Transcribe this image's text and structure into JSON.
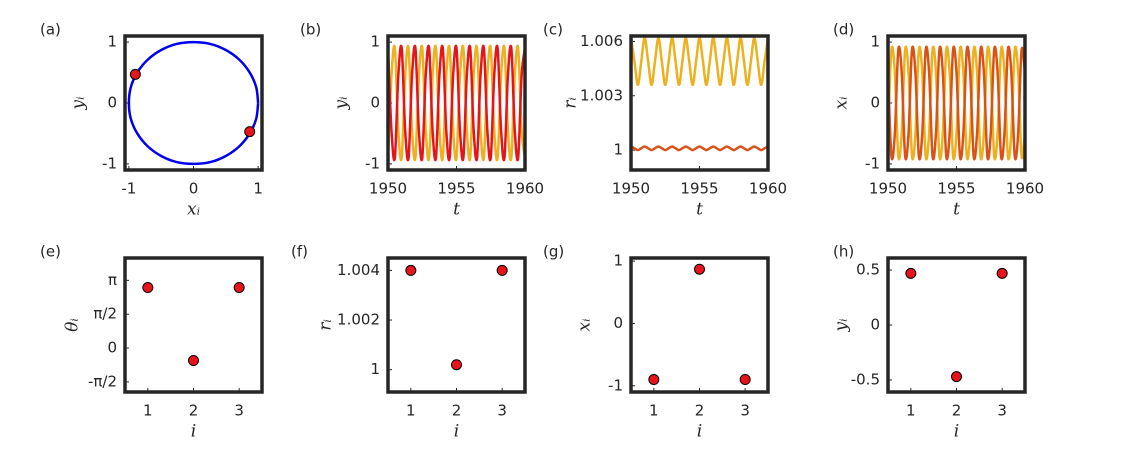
{
  "chart_data": [
    {
      "type": "scatter",
      "label": "(a)",
      "xlabel": "xᵢ",
      "ylabel": "yᵢ",
      "xlim": [
        -1.06,
        1.06
      ],
      "ylim": [
        -1.1,
        1.1
      ],
      "xticks": [
        -1,
        0,
        1
      ],
      "yticks": [
        -1,
        0,
        1
      ],
      "series": [
        {
          "color": "#0000ee",
          "connect": true,
          "x": [
            1,
            0.97,
            0.87,
            0.71,
            0.5,
            0.26,
            0,
            -0.26,
            -0.5,
            -0.71,
            -0.87,
            -0.97,
            -1,
            -0.97,
            -0.87,
            -0.71,
            -0.5,
            -0.26,
            0,
            0.26,
            0.5,
            0.71,
            0.87,
            0.97,
            1
          ],
          "values": [
            0,
            0.26,
            0.5,
            0.71,
            0.87,
            0.97,
            1,
            0.97,
            0.87,
            0.71,
            0.5,
            0.26,
            0,
            -0.26,
            -0.5,
            -0.71,
            -0.87,
            -0.97,
            -1,
            -0.97,
            -0.87,
            -0.71,
            -0.5,
            -0.26,
            0
          ]
        },
        {
          "color": "#e8141c",
          "x": [
            -0.9,
            0.87
          ],
          "values": [
            0.47,
            -0.47
          ]
        }
      ]
    },
    {
      "type": "line",
      "label": "(b)",
      "xlabel": "t",
      "ylabel": "yᵢ",
      "xlim": [
        1950,
        1960
      ],
      "ylim": [
        -1.1,
        1.1
      ],
      "xticks": [
        1950,
        1955,
        1960
      ],
      "yticks": [
        -1,
        0,
        1
      ],
      "x": [
        1950,
        1950.25,
        1950.5,
        1950.75,
        1951,
        1951.25,
        1951.5,
        1951.75,
        1952,
        1952.25,
        1952.5,
        1952.75,
        1953,
        1953.25,
        1953.5,
        1953.75,
        1954,
        1954.25,
        1954.5,
        1954.75,
        1955,
        1955.25,
        1955.5,
        1955.75,
        1956,
        1956.25,
        1956.5,
        1956.75,
        1957,
        1957.25,
        1957.5,
        1957.75,
        1958,
        1958.25,
        1958.5,
        1958.75,
        1959,
        1959.25,
        1959.5,
        1959.75,
        1960
      ],
      "series": [
        {
          "color": "#edb120",
          "values": [
            -0.9,
            0.44,
            0.9,
            -0.44,
            -0.9,
            0.44,
            0.9,
            -0.44,
            -0.9,
            0.44,
            0.9,
            -0.44,
            -0.9,
            0.44,
            0.9,
            -0.44,
            -0.9,
            0.44,
            0.9,
            -0.44,
            -0.9,
            0.44,
            0.9,
            -0.44,
            -0.9,
            0.44,
            0.9,
            -0.44,
            -0.9,
            0.44,
            0.9,
            -0.44,
            -0.9,
            0.44,
            0.9,
            -0.44,
            -0.9,
            0.44,
            0.9,
            -0.44,
            -0.9
          ]
        },
        {
          "color": "#e8141c",
          "values": [
            0.9,
            -0.44,
            -0.9,
            0.44,
            0.9,
            -0.44,
            -0.9,
            0.44,
            0.9,
            -0.44,
            -0.9,
            0.44,
            0.9,
            -0.44,
            -0.9,
            0.44,
            0.9,
            -0.44,
            -0.9,
            0.44,
            0.9,
            -0.44,
            -0.9,
            0.44,
            0.9,
            -0.44,
            -0.9,
            0.44,
            0.9,
            -0.44,
            -0.9,
            0.44,
            0.9,
            -0.44,
            -0.9,
            0.44,
            0.9,
            -0.44,
            -0.9,
            0.44,
            0.9
          ]
        }
      ]
    },
    {
      "type": "line",
      "label": "(c)",
      "xlabel": "t",
      "ylabel": "rᵢ",
      "xlim": [
        1950,
        1960
      ],
      "ylim": [
        0.9989,
        1.0063
      ],
      "xticks": [
        1950,
        1955,
        1960
      ],
      "yticks": [
        1,
        1.003,
        1.006
      ],
      "x": [
        1950,
        1950.25,
        1950.5,
        1950.75,
        1951,
        1951.25,
        1951.5,
        1951.75,
        1952,
        1952.25,
        1952.5,
        1952.75,
        1953,
        1953.25,
        1953.5,
        1953.75,
        1954,
        1954.25,
        1954.5,
        1954.75,
        1955,
        1955.25,
        1955.5,
        1955.75,
        1956,
        1956.25,
        1956.5,
        1956.75,
        1957,
        1957.25,
        1957.5,
        1957.75,
        1958,
        1958.25,
        1958.5,
        1958.75,
        1959,
        1959.25,
        1959.5,
        1959.75,
        1960
      ],
      "series": [
        {
          "color": "#edb120",
          "values": [
            1.0062,
            1.0049,
            1.0036,
            1.0049,
            1.0062,
            1.0049,
            1.0036,
            1.0049,
            1.0062,
            1.0049,
            1.0036,
            1.0049,
            1.0062,
            1.0049,
            1.0036,
            1.0049,
            1.0062,
            1.0049,
            1.0036,
            1.0049,
            1.0062,
            1.0049,
            1.0036,
            1.0049,
            1.0062,
            1.0049,
            1.0036,
            1.0049,
            1.0062,
            1.0049,
            1.0036,
            1.0049,
            1.0062,
            1.0049,
            1.0036,
            1.0049,
            1.0062,
            1.0049,
            1.0036,
            1.0049,
            1.0062
          ]
        },
        {
          "color": "#d95319",
          "values": [
            1.0002,
            1.0001,
            1.0,
            1.0001,
            1.0002,
            1.0001,
            1.0,
            1.0001,
            1.0002,
            1.0001,
            1.0,
            1.0001,
            1.0002,
            1.0001,
            1.0,
            1.0001,
            1.0002,
            1.0001,
            1.0,
            1.0001,
            1.0002,
            1.0001,
            1.0,
            1.0001,
            1.0002,
            1.0001,
            1.0,
            1.0001,
            1.0002,
            1.0001,
            1.0,
            1.0001,
            1.0002,
            1.0001,
            1.0,
            1.0001,
            1.0002,
            1.0001,
            1.0,
            1.0001,
            1.0002
          ]
        }
      ]
    },
    {
      "type": "line",
      "label": "(d)",
      "xlabel": "t",
      "ylabel": "xᵢ",
      "xlim": [
        1950,
        1960
      ],
      "ylim": [
        -1.1,
        1.1
      ],
      "xticks": [
        1950,
        1955,
        1960
      ],
      "yticks": [
        -1,
        0,
        1
      ],
      "x": [
        1950,
        1950.25,
        1950.5,
        1950.75,
        1951,
        1951.25,
        1951.5,
        1951.75,
        1952,
        1952.25,
        1952.5,
        1952.75,
        1953,
        1953.25,
        1953.5,
        1953.75,
        1954,
        1954.25,
        1954.5,
        1954.75,
        1955,
        1955.25,
        1955.5,
        1955.75,
        1956,
        1956.25,
        1956.5,
        1956.75,
        1957,
        1957.25,
        1957.5,
        1957.75,
        1958,
        1958.25,
        1958.5,
        1958.75,
        1959,
        1959.25,
        1959.5,
        1959.75,
        1960
      ],
      "series": [
        {
          "color": "#edb120",
          "values": [
            -0.5,
            0.87,
            0.5,
            -0.87,
            -0.5,
            0.87,
            0.5,
            -0.87,
            -0.5,
            0.87,
            0.5,
            -0.87,
            -0.5,
            0.87,
            0.5,
            -0.87,
            -0.5,
            0.87,
            0.5,
            -0.87,
            -0.5,
            0.87,
            0.5,
            -0.87,
            -0.5,
            0.87,
            0.5,
            -0.87,
            -0.5,
            0.87,
            0.5,
            -0.87,
            -0.5,
            0.87,
            0.5,
            -0.87,
            -0.5,
            0.87,
            0.5,
            -0.87,
            -0.5
          ]
        },
        {
          "color": "#d95319",
          "values": [
            0.5,
            -0.87,
            -0.5,
            0.87,
            0.5,
            -0.87,
            -0.5,
            0.87,
            0.5,
            -0.87,
            -0.5,
            0.87,
            0.5,
            -0.87,
            -0.5,
            0.87,
            0.5,
            -0.87,
            -0.5,
            0.87,
            0.5,
            -0.87,
            -0.5,
            0.87,
            0.5,
            -0.87,
            -0.5,
            0.87,
            0.5,
            -0.87,
            -0.5,
            0.87,
            0.5,
            -0.87,
            -0.5,
            0.87,
            0.5,
            -0.87,
            -0.5,
            0.87,
            0.5
          ]
        }
      ]
    },
    {
      "type": "scatter",
      "label": "(e)",
      "xlabel": "i",
      "ylabel": "θᵢ",
      "xlim": [
        0.5,
        3.5
      ],
      "ylim": [
        -2.04,
        4.18
      ],
      "xticks": [
        1,
        2,
        3
      ],
      "yticks": [
        {
          "value": -1.5708,
          "label": "-π/2"
        },
        0,
        {
          "value": 1.5708,
          "label": "π/2"
        },
        {
          "value": 3.1416,
          "label": "π"
        }
      ],
      "x": [
        1,
        2,
        3
      ],
      "series": [
        {
          "color": "#e8141c",
          "values": [
            2.81,
            -0.58,
            2.81
          ]
        }
      ]
    },
    {
      "type": "scatter",
      "label": "(f)",
      "xlabel": "i",
      "ylabel": "rᵢ",
      "xlim": [
        0.5,
        3.5
      ],
      "ylim": [
        0.9991,
        1.0045
      ],
      "xticks": [
        1,
        2,
        3
      ],
      "yticks": [
        1,
        1.002,
        1.004
      ],
      "x": [
        1,
        2,
        3
      ],
      "series": [
        {
          "color": "#e8141c",
          "values": [
            1.004,
            1.0002,
            1.004
          ]
        }
      ]
    },
    {
      "type": "scatter",
      "label": "(g)",
      "xlabel": "i",
      "ylabel": "xᵢ",
      "xlim": [
        0.5,
        3.5
      ],
      "ylim": [
        -1.1,
        1.05
      ],
      "xticks": [
        1,
        2,
        3
      ],
      "yticks": [
        -1,
        0,
        1
      ],
      "x": [
        1,
        2,
        3
      ],
      "series": [
        {
          "color": "#e8141c",
          "values": [
            -0.9,
            0.87,
            -0.9
          ]
        }
      ]
    },
    {
      "type": "scatter",
      "label": "(h)",
      "xlabel": "i",
      "ylabel": "yᵢ",
      "xlim": [
        0.5,
        3.5
      ],
      "ylim": [
        -0.61,
        0.61
      ],
      "xticks": [
        1,
        2,
        3
      ],
      "yticks": [
        -0.5,
        0,
        0.5
      ],
      "x": [
        1,
        2,
        3
      ],
      "series": [
        {
          "color": "#e8141c",
          "values": [
            0.47,
            -0.47,
            0.47
          ]
        }
      ]
    }
  ]
}
